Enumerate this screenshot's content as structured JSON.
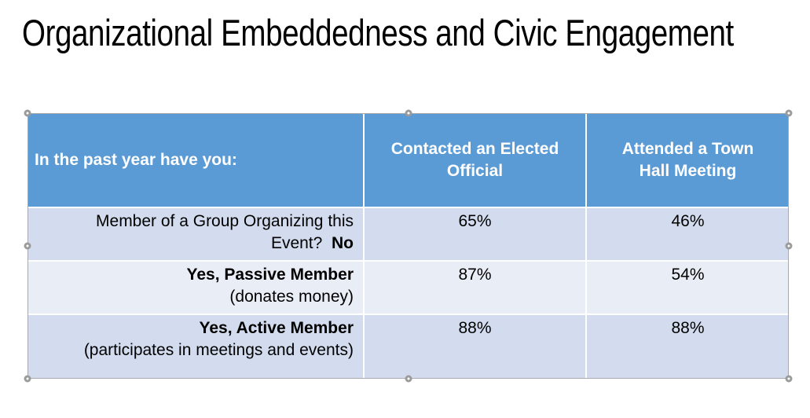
{
  "slide": {
    "title": "Organizational Embeddedness and Civic Engagement"
  },
  "table": {
    "header": {
      "col1": "In the past year have you:",
      "col2": "Contacted an Elected Official",
      "col3": "Attended a Town Hall Meeting"
    },
    "rows": [
      {
        "label_pre": "Member of a Group Organizing this Event?  ",
        "label_bold": "No",
        "contacted": "65%",
        "attended": "46%"
      },
      {
        "label_bold": "Yes, Passive Member",
        "label_sub": "(donates money)",
        "contacted": "87%",
        "attended": "54%"
      },
      {
        "label_bold": "Yes, Active Member",
        "label_sub": "(participates in meetings and events)",
        "contacted": "88%",
        "attended": "88%"
      }
    ]
  },
  "colors": {
    "header_bg": "#5B9BD5",
    "band_dark": "#D3DCEE",
    "band_light": "#E9EDF6",
    "selection_gray": "#A9A9A9",
    "handle_ring": "#9B9B9B"
  }
}
